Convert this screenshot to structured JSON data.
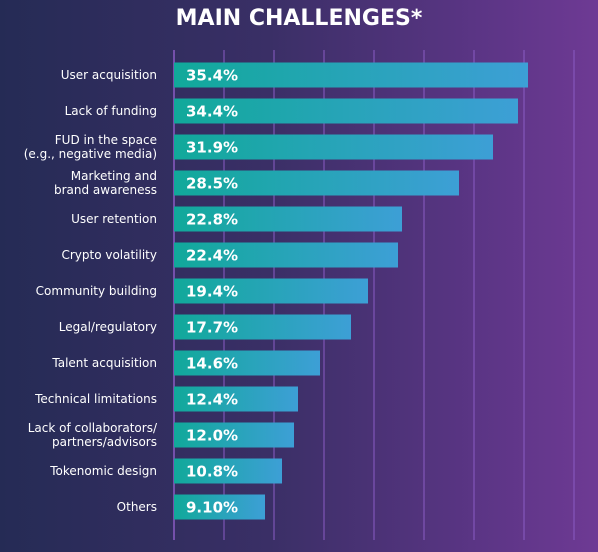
{
  "chart_data": {
    "type": "bar",
    "orientation": "horizontal",
    "title": "MAIN CHALLENGES*",
    "categories": [
      "User acquisition",
      "Lack of funding",
      "FUD in the space\n(e.g., negative media)",
      "Marketing and\nbrand awareness",
      "User retention",
      "Crypto volatility",
      "Community building",
      "Legal/regulatory",
      "Talent acquisition",
      "Technical limitations",
      "Lack of collaborators/\npartners/advisors",
      "Tokenomic design",
      "Others"
    ],
    "values": [
      35.4,
      34.4,
      31.9,
      28.5,
      22.8,
      22.4,
      19.4,
      17.7,
      14.6,
      12.4,
      12.0,
      10.8,
      9.1
    ],
    "data_labels": [
      "35.4%",
      "34.4%",
      "31.9%",
      "28.5%",
      "22.8%",
      "22.4%",
      "19.4%",
      "17.7%",
      "14.6%",
      "12.4%",
      "12.0%",
      "10.8%",
      "9.10%"
    ],
    "xlim": [
      0,
      40
    ],
    "gridlines": [
      0,
      5,
      10,
      15,
      20,
      25,
      30,
      35,
      40
    ],
    "grid": true,
    "colors": {
      "bar_start": "#11a99a",
      "bar_end": "#3d9fd6",
      "grid": "#8a5cc4",
      "text": "#ffffff"
    }
  }
}
